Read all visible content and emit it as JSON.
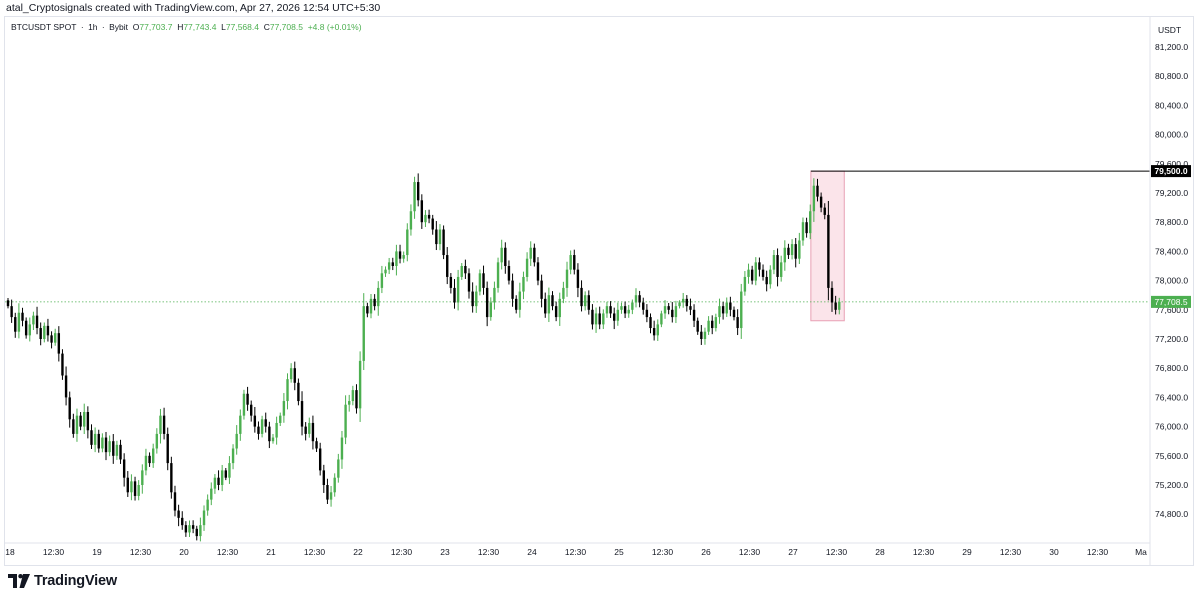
{
  "header": {
    "title": "atal_Cryptosignals created with TradingView.com, Apr 27, 2026 12:54 UTC+5:30"
  },
  "legend": {
    "symbol": "BTCUSDT SPOT",
    "interval": "1h",
    "exchange": "Bybit",
    "open_label": "O",
    "open": "77,703.7",
    "high_label": "H",
    "high": "77,743.4",
    "low_label": "L",
    "low": "77,568.4",
    "close_label": "C",
    "close": "77,708.5",
    "change": "+4.8 (+0.01%)"
  },
  "price_axis": {
    "currency": "USDT",
    "ticks": [
      "81,200.0",
      "80,800.0",
      "80,400.0",
      "80,000.0",
      "79,600.0",
      "79,200.0",
      "78,800.0",
      "78,400.0",
      "78,000.0",
      "77,600.0",
      "77,200.0",
      "76,800.0",
      "76,400.0",
      "76,000.0",
      "75,600.0",
      "75,200.0",
      "74,800.0"
    ],
    "resistance_label": "79,500.0",
    "last_price_label": "77,708.5"
  },
  "time_axis": {
    "ticks": [
      "18",
      "12:30",
      "19",
      "12:30",
      "20",
      "12:30",
      "21",
      "12:30",
      "22",
      "12:30",
      "23",
      "12:30",
      "24",
      "12:30",
      "25",
      "12:30",
      "26",
      "12:30",
      "27",
      "12:30",
      "28",
      "12:30",
      "29",
      "12:30",
      "30",
      "12:30",
      "Ma"
    ]
  },
  "footer": {
    "brand": "TradingView"
  },
  "colors": {
    "up": "#4caf50",
    "down": "#000000",
    "highlight_fill": "#fbe4ea",
    "highlight_stroke": "#e8a0b4",
    "last_price_bg": "#4caf50",
    "resistance_bg": "#000000",
    "last_price_line": "#4caf50"
  },
  "chart_data": {
    "type": "candlestick",
    "interval": "1h",
    "symbol": "BTCUSDT SPOT",
    "ylim": [
      74500,
      81500
    ],
    "resistance_level": 79500,
    "last_price": 77708.5,
    "highlight_zone": {
      "price_high": 79500,
      "price_low": 77450
    },
    "series": [
      {
        "name": "BTCUSDT SPOT",
        "points": [
          {
            "x": "18",
            "c": 77650
          },
          {
            "x": "18",
            "c": 77500
          },
          {
            "x": "18",
            "c": 77300
          },
          {
            "x": "18",
            "c": 77560
          },
          {
            "x": "18",
            "c": 77450
          },
          {
            "x": "18",
            "c": 77250
          },
          {
            "x": "18",
            "c": 77400
          },
          {
            "x": "18",
            "c": 77520
          },
          {
            "x": "18",
            "c": 77350
          },
          {
            "x": "18",
            "c": 77200
          },
          {
            "x": "18",
            "c": 77380
          },
          {
            "x": "18",
            "c": 77250
          },
          {
            "x": "18",
            "c": 77150
          },
          {
            "x": "18",
            "c": 77280
          },
          {
            "x": "18",
            "c": 77000
          },
          {
            "x": "18",
            "c": 76700
          },
          {
            "x": "18",
            "c": 76400
          },
          {
            "x": "18",
            "c": 76100
          },
          {
            "x": "18",
            "c": 75900
          },
          {
            "x": "18",
            "c": 76150
          },
          {
            "x": "18",
            "c": 76000
          },
          {
            "x": "18",
            "c": 76200
          },
          {
            "x": "18",
            "c": 75950
          },
          {
            "x": "18",
            "c": 75750
          },
          {
            "x": "18",
            "c": 75900
          },
          {
            "x": "19",
            "c": 75700
          },
          {
            "x": "19",
            "c": 75850
          },
          {
            "x": "19",
            "c": 75650
          },
          {
            "x": "19",
            "c": 75800
          },
          {
            "x": "19",
            "c": 75600
          },
          {
            "x": "19",
            "c": 75750
          },
          {
            "x": "19",
            "c": 75550
          },
          {
            "x": "19",
            "c": 75300
          },
          {
            "x": "19",
            "c": 75100
          },
          {
            "x": "19",
            "c": 75250
          },
          {
            "x": "19",
            "c": 75050
          },
          {
            "x": "19",
            "c": 75200
          },
          {
            "x": "19",
            "c": 75400
          },
          {
            "x": "19",
            "c": 75600
          },
          {
            "x": "19",
            "c": 75500
          },
          {
            "x": "19",
            "c": 75700
          },
          {
            "x": "19",
            "c": 75900
          },
          {
            "x": "19",
            "c": 76150
          },
          {
            "x": "19",
            "c": 75900
          },
          {
            "x": "19",
            "c": 75500
          },
          {
            "x": "19",
            "c": 75100
          },
          {
            "x": "19",
            "c": 74850
          },
          {
            "x": "19",
            "c": 74750
          },
          {
            "x": "19",
            "c": 74650
          },
          {
            "x": "20",
            "c": 74550
          },
          {
            "x": "20",
            "c": 74650
          },
          {
            "x": "20",
            "c": 74600
          },
          {
            "x": "20",
            "c": 74500
          },
          {
            "x": "20",
            "c": 74650
          },
          {
            "x": "20",
            "c": 74850
          },
          {
            "x": "20",
            "c": 75000
          },
          {
            "x": "20",
            "c": 75150
          },
          {
            "x": "20",
            "c": 75300
          },
          {
            "x": "20",
            "c": 75200
          },
          {
            "x": "20",
            "c": 75400
          },
          {
            "x": "20",
            "c": 75300
          },
          {
            "x": "20",
            "c": 75500
          },
          {
            "x": "20",
            "c": 75700
          },
          {
            "x": "20",
            "c": 75900
          },
          {
            "x": "20",
            "c": 76150
          },
          {
            "x": "20",
            "c": 76450
          },
          {
            "x": "20",
            "c": 76300
          },
          {
            "x": "20",
            "c": 76150
          },
          {
            "x": "20",
            "c": 76000
          },
          {
            "x": "20",
            "c": 75900
          },
          {
            "x": "20",
            "c": 76100
          },
          {
            "x": "20",
            "c": 76000
          },
          {
            "x": "20",
            "c": 75800
          },
          {
            "x": "20",
            "c": 75850
          },
          {
            "x": "21",
            "c": 76050
          },
          {
            "x": "21",
            "c": 76150
          },
          {
            "x": "21",
            "c": 76350
          },
          {
            "x": "21",
            "c": 76650
          },
          {
            "x": "21",
            "c": 76800
          },
          {
            "x": "21",
            "c": 76600
          },
          {
            "x": "21",
            "c": 76350
          },
          {
            "x": "21",
            "c": 76000
          },
          {
            "x": "21",
            "c": 75900
          },
          {
            "x": "21",
            "c": 76050
          },
          {
            "x": "21",
            "c": 75800
          },
          {
            "x": "21",
            "c": 75700
          },
          {
            "x": "21",
            "c": 75400
          },
          {
            "x": "21",
            "c": 75200
          },
          {
            "x": "21",
            "c": 75000
          },
          {
            "x": "21",
            "c": 75100
          },
          {
            "x": "21",
            "c": 75300
          },
          {
            "x": "21",
            "c": 75550
          },
          {
            "x": "21",
            "c": 75850
          },
          {
            "x": "21",
            "c": 76300
          },
          {
            "x": "21",
            "c": 76350
          },
          {
            "x": "21",
            "c": 76500
          },
          {
            "x": "21",
            "c": 76250
          },
          {
            "x": "21",
            "c": 76900
          },
          {
            "x": "21",
            "c": 77650
          },
          {
            "x": "22",
            "c": 77550
          },
          {
            "x": "22",
            "c": 77750
          },
          {
            "x": "22",
            "c": 77650
          },
          {
            "x": "22",
            "c": 77900
          },
          {
            "x": "22",
            "c": 78100
          },
          {
            "x": "22",
            "c": 78150
          },
          {
            "x": "22",
            "c": 78250
          },
          {
            "x": "22",
            "c": 78200
          },
          {
            "x": "22",
            "c": 78400
          },
          {
            "x": "22",
            "c": 78300
          },
          {
            "x": "22",
            "c": 78350
          },
          {
            "x": "22",
            "c": 78700
          },
          {
            "x": "22",
            "c": 78950
          },
          {
            "x": "22",
            "c": 79350
          },
          {
            "x": "22",
            "c": 79100
          },
          {
            "x": "22",
            "c": 78800
          },
          {
            "x": "22",
            "c": 78900
          },
          {
            "x": "22",
            "c": 78850
          },
          {
            "x": "22",
            "c": 78700
          },
          {
            "x": "22",
            "c": 78500
          },
          {
            "x": "22",
            "c": 78700
          },
          {
            "x": "22",
            "c": 78350
          },
          {
            "x": "22",
            "c": 78050
          },
          {
            "x": "22",
            "c": 77900
          },
          {
            "x": "23",
            "c": 77700
          },
          {
            "x": "23",
            "c": 78050
          },
          {
            "x": "23",
            "c": 78200
          },
          {
            "x": "23",
            "c": 78100
          },
          {
            "x": "23",
            "c": 77850
          },
          {
            "x": "23",
            "c": 77650
          },
          {
            "x": "23",
            "c": 77850
          },
          {
            "x": "23",
            "c": 78100
          },
          {
            "x": "23",
            "c": 77900
          },
          {
            "x": "23",
            "c": 77500
          },
          {
            "x": "23",
            "c": 77700
          },
          {
            "x": "23",
            "c": 77900
          },
          {
            "x": "23",
            "c": 78250
          },
          {
            "x": "23",
            "c": 78450
          },
          {
            "x": "23",
            "c": 78200
          },
          {
            "x": "23",
            "c": 78000
          },
          {
            "x": "23",
            "c": 77750
          },
          {
            "x": "23",
            "c": 77600
          },
          {
            "x": "23",
            "c": 77850
          },
          {
            "x": "23",
            "c": 78050
          },
          {
            "x": "23",
            "c": 78300
          },
          {
            "x": "23",
            "c": 78450
          },
          {
            "x": "23",
            "c": 78250
          },
          {
            "x": "23",
            "c": 78000
          },
          {
            "x": "24",
            "c": 77750
          },
          {
            "x": "24",
            "c": 77550
          },
          {
            "x": "24",
            "c": 77800
          },
          {
            "x": "24",
            "c": 77650
          },
          {
            "x": "24",
            "c": 77500
          },
          {
            "x": "24",
            "c": 77750
          },
          {
            "x": "24",
            "c": 77900
          },
          {
            "x": "24",
            "c": 78150
          },
          {
            "x": "24",
            "c": 78350
          },
          {
            "x": "24",
            "c": 78150
          },
          {
            "x": "24",
            "c": 77900
          },
          {
            "x": "24",
            "c": 77650
          },
          {
            "x": "24",
            "c": 77800
          },
          {
            "x": "24",
            "c": 77600
          },
          {
            "x": "24",
            "c": 77400
          },
          {
            "x": "24",
            "c": 77550
          },
          {
            "x": "24",
            "c": 77400
          },
          {
            "x": "24",
            "c": 77550
          },
          {
            "x": "24",
            "c": 77650
          },
          {
            "x": "24",
            "c": 77550
          },
          {
            "x": "24",
            "c": 77450
          },
          {
            "x": "24",
            "c": 77600
          },
          {
            "x": "24",
            "c": 77650
          },
          {
            "x": "24",
            "c": 77550
          },
          {
            "x": "25",
            "c": 77600
          },
          {
            "x": "25",
            "c": 77700
          },
          {
            "x": "25",
            "c": 77800
          },
          {
            "x": "25",
            "c": 77700
          },
          {
            "x": "25",
            "c": 77600
          },
          {
            "x": "25",
            "c": 77500
          },
          {
            "x": "25",
            "c": 77350
          },
          {
            "x": "25",
            "c": 77250
          },
          {
            "x": "25",
            "c": 77400
          },
          {
            "x": "25",
            "c": 77550
          },
          {
            "x": "25",
            "c": 77650
          },
          {
            "x": "25",
            "c": 77600
          },
          {
            "x": "25",
            "c": 77500
          },
          {
            "x": "25",
            "c": 77650
          },
          {
            "x": "25",
            "c": 77700
          },
          {
            "x": "25",
            "c": 77750
          },
          {
            "x": "25",
            "c": 77650
          },
          {
            "x": "25",
            "c": 77600
          },
          {
            "x": "25",
            "c": 77450
          },
          {
            "x": "25",
            "c": 77300
          },
          {
            "x": "25",
            "c": 77200
          },
          {
            "x": "25",
            "c": 77300
          },
          {
            "x": "25",
            "c": 77450
          },
          {
            "x": "25",
            "c": 77350
          },
          {
            "x": "26",
            "c": 77500
          },
          {
            "x": "26",
            "c": 77650
          },
          {
            "x": "26",
            "c": 77550
          },
          {
            "x": "26",
            "c": 77700
          },
          {
            "x": "26",
            "c": 77600
          },
          {
            "x": "26",
            "c": 77500
          },
          {
            "x": "26",
            "c": 77350
          },
          {
            "x": "26",
            "c": 77850
          },
          {
            "x": "26",
            "c": 78050
          },
          {
            "x": "26",
            "c": 78150
          },
          {
            "x": "26",
            "c": 78000
          },
          {
            "x": "26",
            "c": 78250
          },
          {
            "x": "26",
            "c": 78150
          },
          {
            "x": "26",
            "c": 78050
          },
          {
            "x": "26",
            "c": 77950
          },
          {
            "x": "26",
            "c": 78150
          },
          {
            "x": "26",
            "c": 78350
          },
          {
            "x": "26",
            "c": 78050
          },
          {
            "x": "26",
            "c": 78250
          },
          {
            "x": "26",
            "c": 78450
          },
          {
            "x": "26",
            "c": 78350
          },
          {
            "x": "26",
            "c": 78500
          },
          {
            "x": "26",
            "c": 78300
          },
          {
            "x": "26",
            "c": 78550
          },
          {
            "x": "27",
            "c": 78800
          },
          {
            "x": "27",
            "c": 78650
          },
          {
            "x": "27",
            "c": 78950
          },
          {
            "x": "27",
            "c": 79300
          },
          {
            "x": "27",
            "c": 79150
          },
          {
            "x": "27",
            "c": 79000
          },
          {
            "x": "27",
            "c": 78900
          },
          {
            "x": "27",
            "c": 77900
          },
          {
            "x": "27",
            "c": 77700
          },
          {
            "x": "27",
            "c": 77600
          },
          {
            "x": "27",
            "c": 77708.5
          }
        ]
      }
    ]
  }
}
